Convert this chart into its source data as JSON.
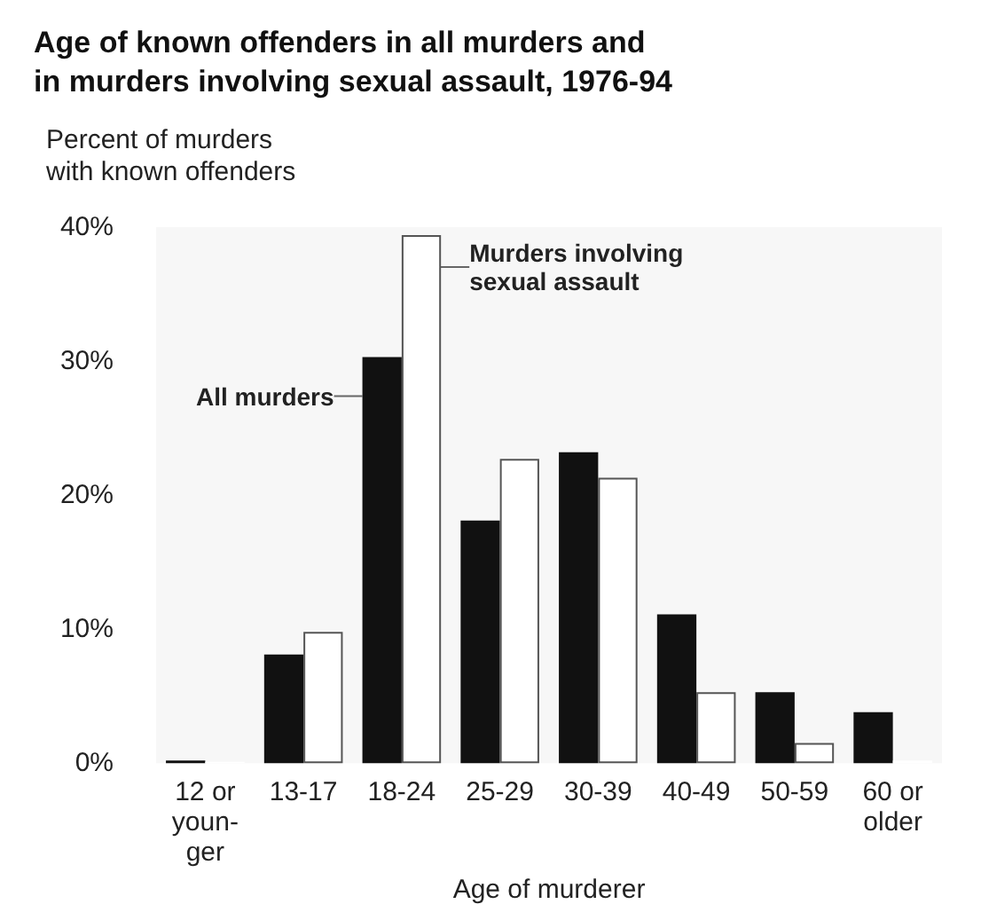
{
  "chart_data": {
    "type": "bar",
    "title": "Age of known offenders in all murders and\nin murders involving sexual assault, 1976-94",
    "ylabel": "Percent of murders\nwith known offenders",
    "xlabel": "Age of murderer",
    "categories": [
      "12 or\nyoun-\nger",
      "13-17",
      "18-24",
      "25-29",
      "30-39",
      "40-49",
      "50-59",
      "60 or\nolder"
    ],
    "series": [
      {
        "name": "All murders",
        "color": "#111111",
        "values": [
          0.2,
          8.1,
          30.3,
          18.1,
          23.2,
          11.1,
          5.3,
          3.8
        ]
      },
      {
        "name": "Murders involving\nsexual assault",
        "color": "#ffffff",
        "values": [
          0.1,
          9.8,
          39.4,
          22.7,
          21.3,
          5.3,
          1.5,
          0.2
        ]
      }
    ],
    "ylim": [
      0,
      40
    ],
    "yticks": [
      {
        "value": 0,
        "label": "0%"
      },
      {
        "value": 10,
        "label": "10%"
      },
      {
        "value": 20,
        "label": "20%"
      },
      {
        "value": 30,
        "label": "30%"
      },
      {
        "value": 40,
        "label": "40%"
      }
    ],
    "grid": false,
    "legend": false
  }
}
